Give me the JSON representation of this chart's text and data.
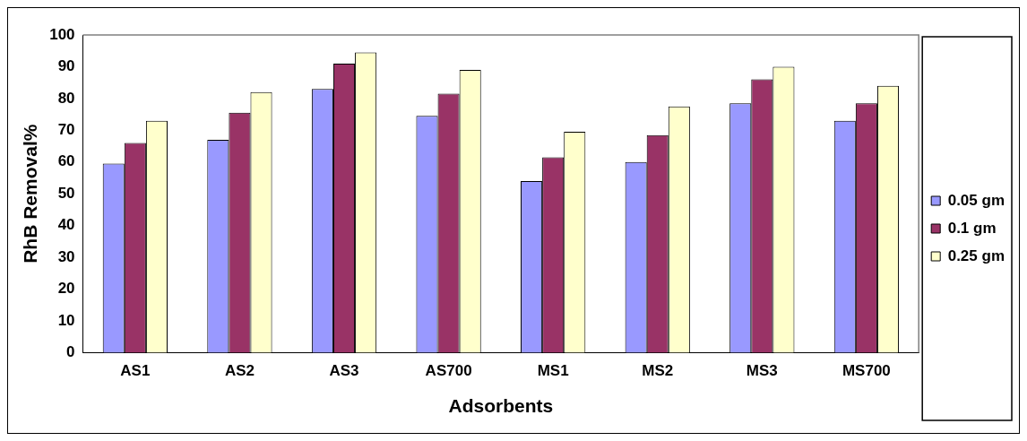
{
  "chart_data": {
    "type": "bar",
    "xlabel": "Adsorbents",
    "ylabel": "RhB Removal%",
    "categories": [
      "AS1",
      "AS2",
      "AS3",
      "AS700",
      "MS1",
      "MS2",
      "MS3",
      "MS700"
    ],
    "series": [
      {
        "name": "0.05 gm",
        "color": "#9999ff",
        "values": [
          59.5,
          67,
          83,
          74.5,
          54,
          60,
          78.5,
          73
        ]
      },
      {
        "name": "0.1 gm",
        "color": "#993366",
        "values": [
          66,
          75.5,
          91,
          81.5,
          61.5,
          68.5,
          86,
          78.5
        ]
      },
      {
        "name": "0.25 gm",
        "color": "#ffffcc",
        "values": [
          73,
          82,
          94.5,
          89,
          69.5,
          77.5,
          90,
          84
        ]
      }
    ],
    "ylim": [
      0,
      100
    ],
    "yticks": [
      0,
      10,
      20,
      30,
      40,
      50,
      60,
      70,
      80,
      90,
      100
    ],
    "grid": false,
    "legend": "right"
  }
}
